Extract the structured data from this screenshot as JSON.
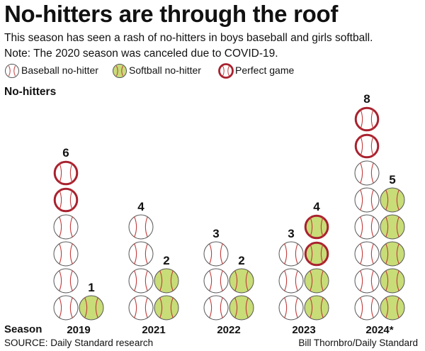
{
  "title": "No-hitters are through the roof",
  "subtitle_1": "This season has seen a rash of no-hitters in boys baseball and girls softball.",
  "subtitle_2": "Note: The 2020 season was canceled due to COVID-19.",
  "legend": {
    "baseball": "Baseball no-hitter",
    "softball": "Softball no-hitter",
    "perfect": "Perfect game"
  },
  "y_axis_title": "No-hitters",
  "x_axis_title": "Season",
  "source": "SOURCE: Daily Standard research",
  "credit": "Bill Thornbro/Daily Standard",
  "colors": {
    "baseball_fill": "#ffffff",
    "softball_fill": "#c8dc78",
    "ball_outline": "#555555",
    "perfect_ring": "#a8222f",
    "stitch": "#c23a3a"
  },
  "chart_data": {
    "type": "bar",
    "x_axis_title": "Season",
    "categories": [
      "2019",
      "2021",
      "2022",
      "2023",
      "2024*"
    ],
    "series": [
      {
        "name": "Baseball no-hitter",
        "values": [
          6,
          4,
          3,
          3,
          8
        ],
        "perfect_games": [
          2,
          0,
          0,
          0,
          2
        ]
      },
      {
        "name": "Softball no-hitter",
        "values": [
          1,
          2,
          2,
          4,
          5
        ],
        "perfect_games": [
          0,
          0,
          0,
          2,
          0
        ]
      }
    ],
    "data_labels": {
      "Baseball no-hitter": [
        "6",
        "4",
        "3",
        "3",
        "8"
      ],
      "Softball no-hitter": [
        "1",
        "2",
        "2",
        "4",
        "5"
      ]
    },
    "legend": "top",
    "grid": false
  }
}
